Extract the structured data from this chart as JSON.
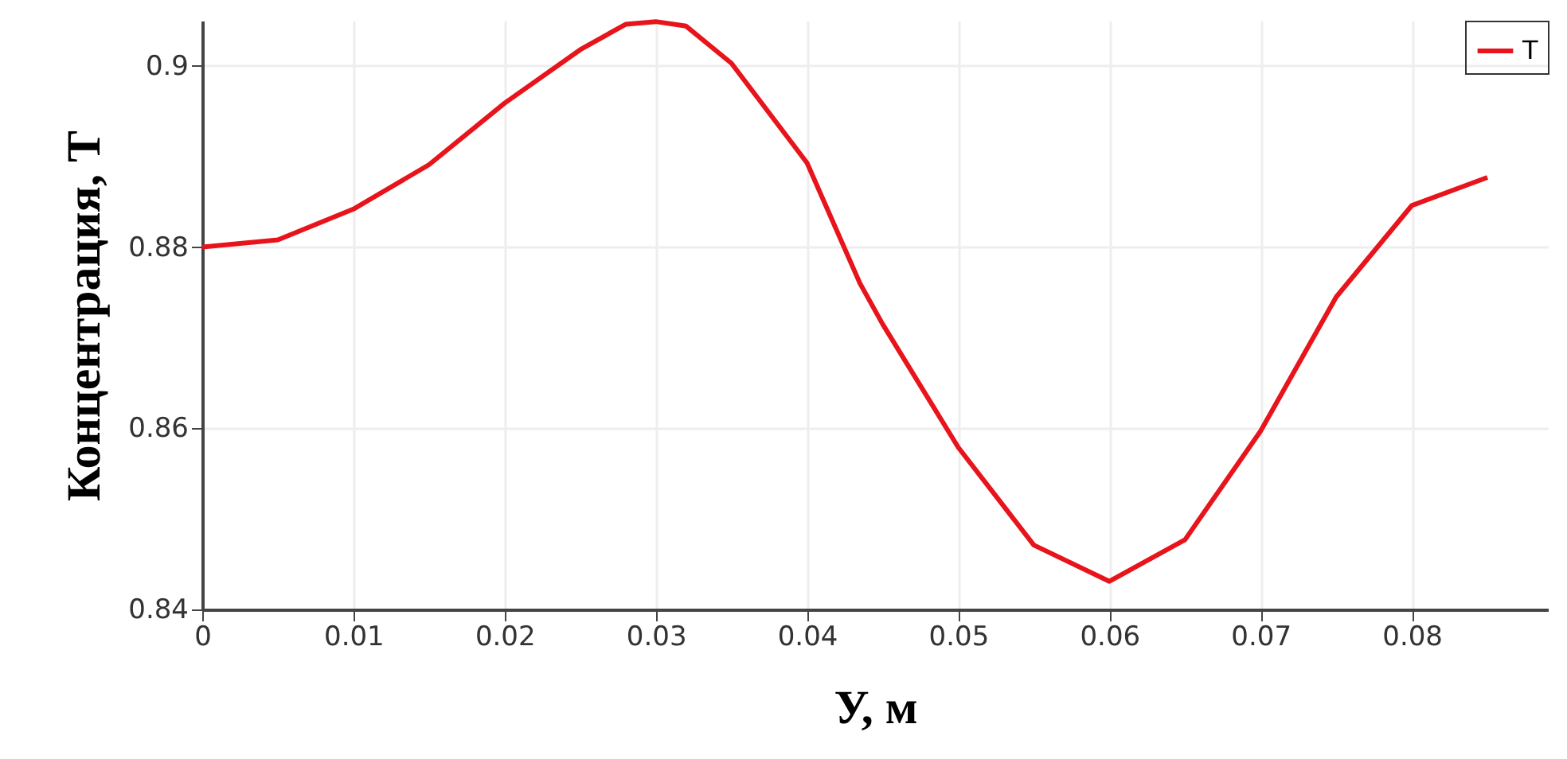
{
  "chart_data": {
    "type": "line",
    "xlabel": "У, м",
    "ylabel": "Концентрация, T",
    "x": [
      0,
      0.005,
      0.01,
      0.015,
      0.02,
      0.025,
      0.028,
      0.03,
      0.032,
      0.035,
      0.04,
      0.0435,
      0.045,
      0.05,
      0.055,
      0.06,
      0.065,
      0.07,
      0.075,
      0.08,
      0.085
    ],
    "series": [
      {
        "name": "T",
        "color": "#e8141c",
        "values": [
          0.88,
          0.8808,
          0.8842,
          0.8891,
          0.8959,
          0.9018,
          0.9046,
          0.9049,
          0.9044,
          0.9003,
          0.8893,
          0.876,
          0.8715,
          0.8579,
          0.8471,
          0.8431,
          0.8477,
          0.8597,
          0.8745,
          0.8846,
          0.8877
        ]
      }
    ],
    "xlim": [
      0,
      0.089
    ],
    "ylim": [
      0.84,
      0.905
    ],
    "xticks": [
      0,
      0.01,
      0.02,
      0.03,
      0.04,
      0.05,
      0.06,
      0.07,
      0.08
    ],
    "yticks": [
      0.84,
      0.86,
      0.88,
      0.9
    ],
    "grid": true,
    "legend": "top right",
    "line_style": "solid",
    "marker": "none"
  }
}
